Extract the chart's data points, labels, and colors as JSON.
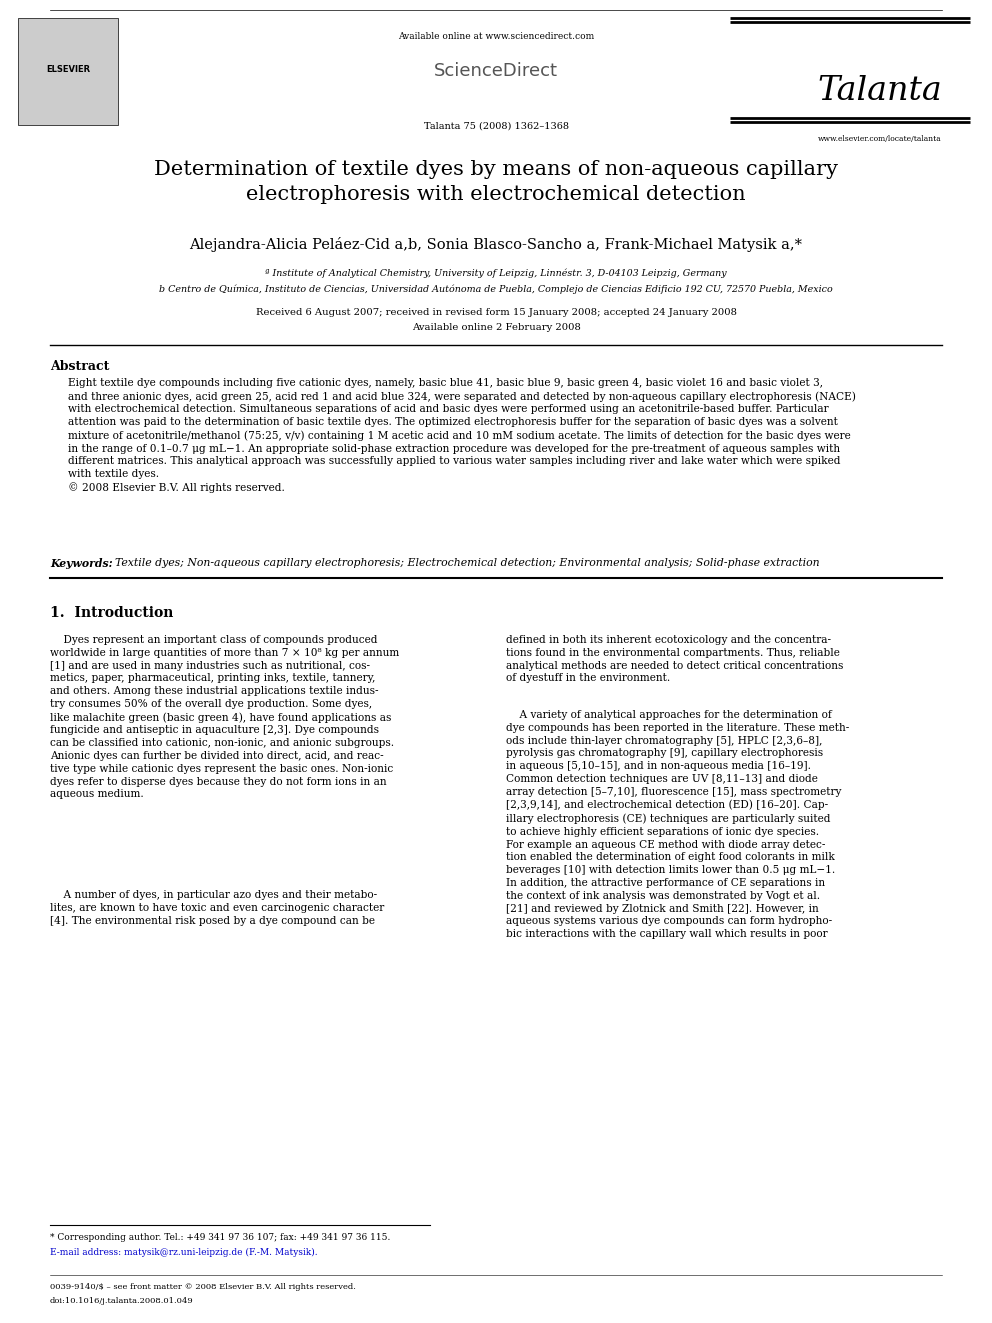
{
  "bg_color": "#ffffff",
  "page_width": 9.92,
  "page_height": 13.23,
  "header_available_online": "Available online at www.sciencedirect.com",
  "header_sciencedirect": "ScienceDirect",
  "header_journal_name": "Talanta",
  "header_journal_info": "Talanta 75 (2008) 1362–1368",
  "header_journal_url": "www.elsevier.com/locate/talanta",
  "title": "Determination of textile dyes by means of non-aqueous capillary\nelectrophoresis with electrochemical detection",
  "authors": "Alejandra-Alicia Peláez-Cid a,b, Sonia Blasco-Sancho a, Frank-Michael Matysik a,*",
  "affil_a": "ª Institute of Analytical Chemistry, University of Leipzig, Linnéstr. 3, D-04103 Leipzig, Germany",
  "affil_b": "b Centro de Química, Instituto de Ciencias, Universidad Autónoma de Puebla, Complejo de Ciencias Edificio 192 CU, 72570 Puebla, Mexico",
  "received": "Received 6 August 2007; received in revised form 15 January 2008; accepted 24 January 2008",
  "available": "Available online 2 February 2008",
  "abstract_title": "Abstract",
  "abstract_text": "Eight textile dye compounds including five cationic dyes, namely, basic blue 41, basic blue 9, basic green 4, basic violet 16 and basic violet 3,\nand three anionic dyes, acid green 25, acid red 1 and acid blue 324, were separated and detected by non-aqueous capillary electrophoresis (NACE)\nwith electrochemical detection. Simultaneous separations of acid and basic dyes were performed using an acetonitrile-based buffer. Particular\nattention was paid to the determination of basic textile dyes. The optimized electrophoresis buffer for the separation of basic dyes was a solvent\nmixture of acetonitrile/methanol (75:25, v/v) containing 1 M acetic acid and 10 mM sodium acetate. The limits of detection for the basic dyes were\nin the range of 0.1–0.7 μg mL−1. An appropriate solid-phase extraction procedure was developed for the pre-treatment of aqueous samples with\ndifferent matrices. This analytical approach was successfully applied to various water samples including river and lake water which were spiked\nwith textile dyes.\n© 2008 Elsevier B.V. All rights reserved.",
  "keywords_label": "Keywords:",
  "keywords_text": "Textile dyes; Non-aqueous capillary electrophoresis; Electrochemical detection; Environmental analysis; Solid-phase extraction",
  "section1_title": "1.  Introduction",
  "col1_para1": "    Dyes represent an important class of compounds produced\nworldwide in large quantities of more than 7 × 10⁸ kg per annum\n[1] and are used in many industries such as nutritional, cos-\nmetics, paper, pharmaceutical, printing inks, textile, tannery,\nand others. Among these industrial applications textile indus-\ntry consumes 50% of the overall dye production. Some dyes,\nlike malachite green (basic green 4), have found applications as\nfungicide and antiseptic in aquaculture [2,3]. Dye compounds\ncan be classified into cationic, non-ionic, and anionic subgroups.\nAnionic dyes can further be divided into direct, acid, and reac-\ntive type while cationic dyes represent the basic ones. Non-ionic\ndyes refer to disperse dyes because they do not form ions in an\naqueous medium.",
  "col1_para2": "    A number of dyes, in particular azo dyes and their metabo-\nlites, are known to have toxic and even carcinogenic character\n[4]. The environmental risk posed by a dye compound can be",
  "col2_para1": "defined in both its inherent ecotoxicology and the concentra-\ntions found in the environmental compartments. Thus, reliable\nanalytical methods are needed to detect critical concentrations\nof dyestuff in the environment.",
  "col2_para2": "    A variety of analytical approaches for the determination of\ndye compounds has been reported in the literature. These meth-\nods include thin-layer chromatography [5], HPLC [2,3,6–8],\npyrolysis gas chromatography [9], capillary electrophoresis\nin aqueous [5,10–15], and in non-aqueous media [16–19].\nCommon detection techniques are UV [8,11–13] and diode\narray detection [5–7,10], fluorescence [15], mass spectrometry\n[2,3,9,14], and electrochemical detection (ED) [16–20]. Cap-\nillary electrophoresis (CE) techniques are particularly suited\nto achieve highly efficient separations of ionic dye species.\nFor example an aqueous CE method with diode array detec-\ntion enabled the determination of eight food colorants in milk\nbeverages [10] with detection limits lower than 0.5 μg mL−1.\nIn addition, the attractive performance of CE separations in\nthe context of ink analysis was demonstrated by Vogt et al.\n[21] and reviewed by Zlotnick and Smith [22]. However, in\naqueous systems various dye compounds can form hydropho-\nbic interactions with the capillary wall which results in poor",
  "footnote1": "* Corresponding author. Tel.: +49 341 97 36 107; fax: +49 341 97 36 115.",
  "footnote2": "E-mail address: matysik@rz.uni-leipzig.de (F.-M. Matysik).",
  "footer1": "0039-9140/$ – see front matter © 2008 Elsevier B.V. All rights reserved.",
  "footer2": "doi:10.1016/j.talanta.2008.01.049"
}
